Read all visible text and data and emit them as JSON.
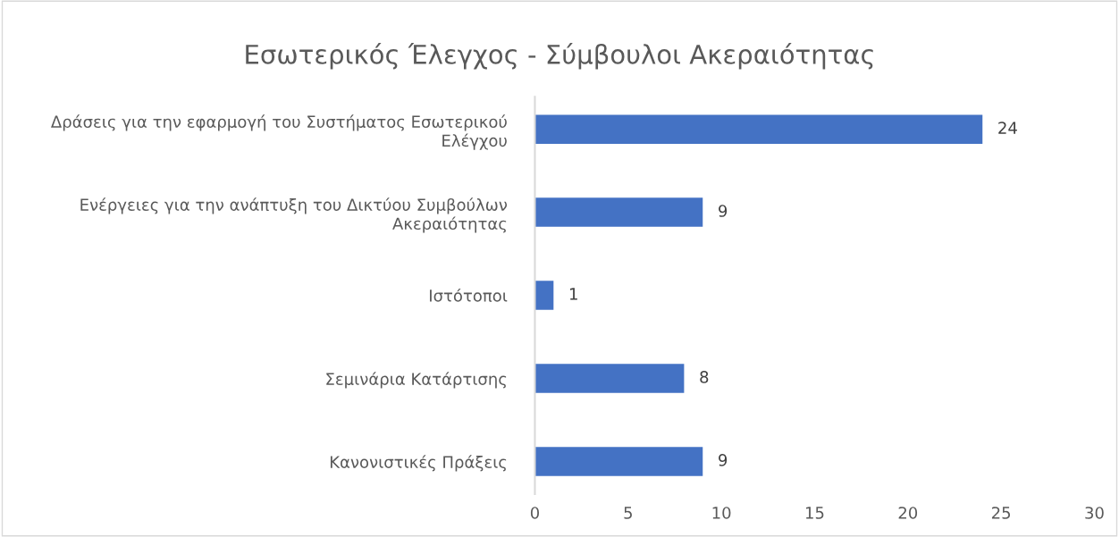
{
  "chart_data": {
    "type": "bar",
    "orientation": "horizontal",
    "title": "Εσωτερικός Έλεγχος - Σύμβουλοι Ακεραιότητας",
    "categories": [
      "Δράσεις για την εφαρμογή του Συστήματος Εσωτερικού Ελέγχου",
      "Ενέργειες για την ανάπτυξη του Δικτύου Συμβούλων Ακεραιότητας",
      "Ιστότοποι",
      "Σεμινάρια Κατάρτισης",
      "Κανονιστικές Πράξεις"
    ],
    "values": [
      24,
      9,
      1,
      8,
      9
    ],
    "color": "#4472c4",
    "xlim": [
      0,
      30
    ],
    "xticks": [
      0,
      5,
      10,
      15,
      20,
      25,
      30
    ],
    "grid": false,
    "data_labels": true
  }
}
